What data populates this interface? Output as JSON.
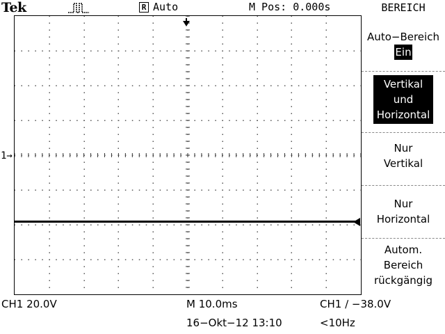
{
  "header": {
    "brand": "Tek",
    "acquire_icon": "pulse-waveform-icon",
    "status_box": "R",
    "status_text": "Auto",
    "mpos": "M Pos: 0.000s",
    "menu_title": "BEREICH"
  },
  "markers": {
    "ch1_ground": "1→"
  },
  "side_menu": {
    "auto_range_label": "Auto−Bereich",
    "auto_range_value": "Ein",
    "item2_line1": "Vertikal",
    "item2_line2": "und",
    "item2_line3": "Horizontal",
    "item3_line1": "Nur",
    "item3_line2": "Vertikal",
    "item4_line1": "Nur",
    "item4_line2": "Horizontal",
    "item5_line1": "Autom.",
    "item5_line2": "Bereich",
    "item5_line3": "rückgängig"
  },
  "footer": {
    "ch1_scale": "CH1  20.0V",
    "timebase": "M 10.0ms",
    "trigger": "CH1 ∕ −38.0V",
    "datetime": "16−Okt−12 13:10",
    "freq": "<10Hz"
  },
  "colors": {
    "foreground": "#000000",
    "background": "#ffffff"
  }
}
